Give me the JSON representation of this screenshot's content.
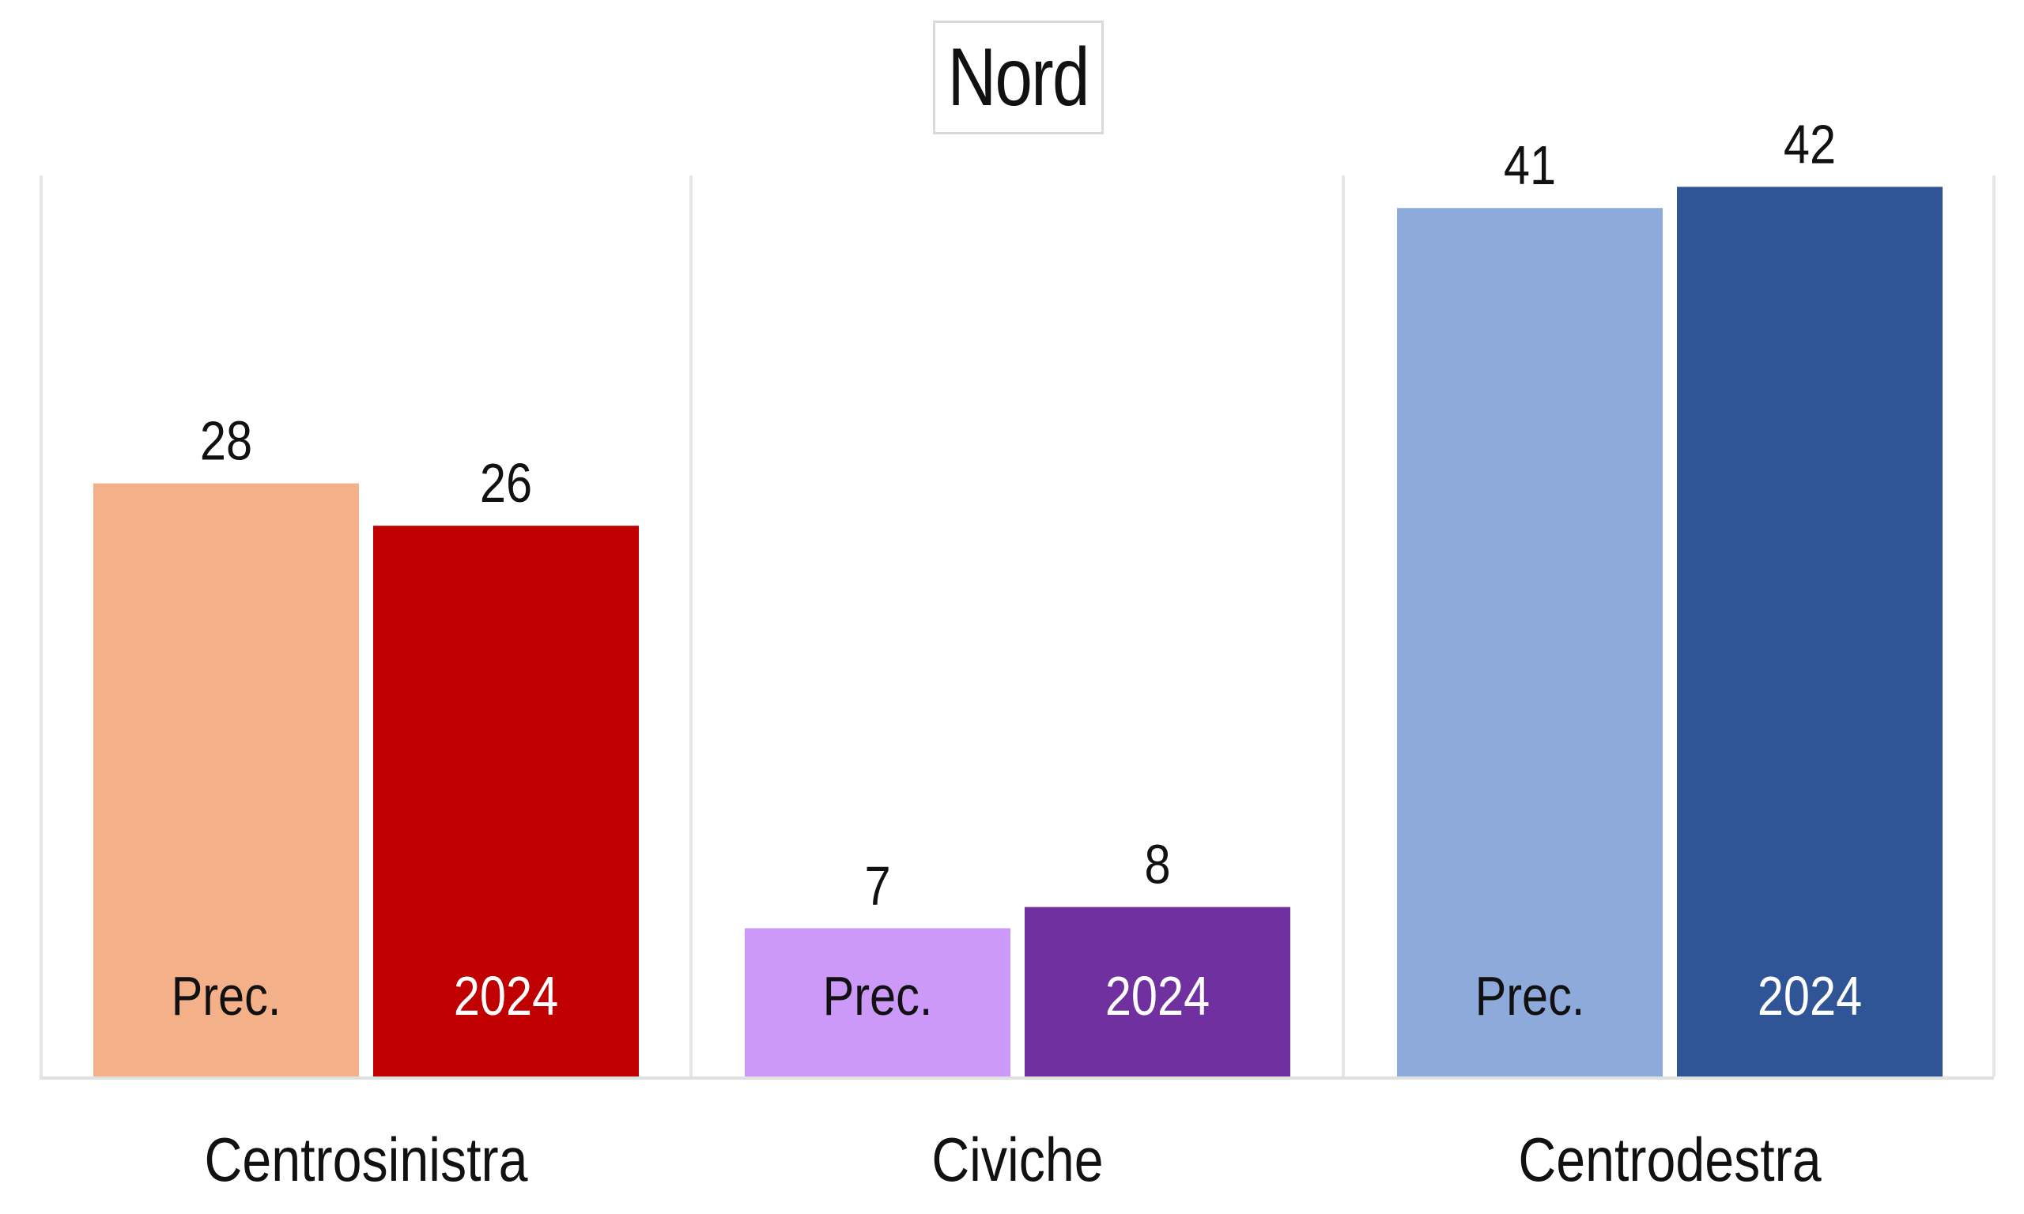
{
  "chart_data": {
    "type": "bar",
    "title": "Nord",
    "xlabel": "",
    "ylabel": "",
    "ylim": [
      0,
      45
    ],
    "grid": false,
    "legend": "none",
    "categories": [
      "Centrosinistra",
      "Civiche",
      "Centrodestra"
    ],
    "series": [
      {
        "name": "Prec.",
        "values": [
          28,
          7,
          41
        ]
      },
      {
        "name": "2024",
        "values": [
          26,
          8,
          42
        ]
      }
    ],
    "colors": {
      "Centrosinistra": [
        "#F4B088",
        "#C00000"
      ],
      "Civiche": [
        "#CC99F9",
        "#7030A0"
      ],
      "Centrodestra": [
        "#8EAADB",
        "#2F5597"
      ]
    },
    "label_colors": {
      "Prec.": "#111111",
      "2024": "#ffffff"
    },
    "separator_color": "#e6e6e6",
    "axis_color": "#e0e0e0"
  }
}
